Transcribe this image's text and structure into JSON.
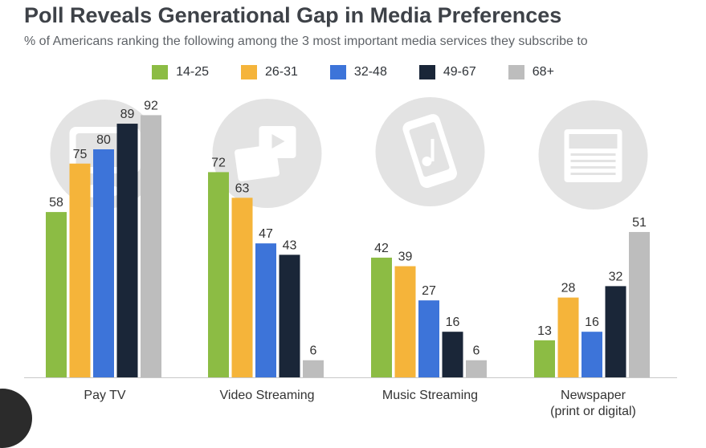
{
  "title": "Poll Reveals Generational Gap in Media Preferences",
  "subtitle": "% of Americans ranking the following among the 3 most important media services they subscribe to",
  "colors": {
    "14-25": "#8cbc44",
    "26-31": "#f5b43a",
    "32-48": "#3d74d9",
    "49-67": "#1a2638",
    "68+": "#bdbdbd"
  },
  "chart_data": {
    "type": "bar",
    "title": "Poll Reveals Generational Gap in Media Preferences",
    "subtitle": "% of Americans ranking the following among the 3 most important media services they subscribe to",
    "xlabel": "",
    "ylabel": "",
    "ylim": [
      0,
      92
    ],
    "grid": false,
    "legend_position": "top-center",
    "categories": [
      {
        "label": "Pay TV",
        "icon": "tv-icon"
      },
      {
        "label": "Video Streaming",
        "icon": "video-streaming-icon"
      },
      {
        "label": "Music Streaming",
        "icon": "music-phone-icon"
      },
      {
        "label": "Newspaper",
        "label_line2": "(print or digital)",
        "icon": "newspaper-icon"
      }
    ],
    "series": [
      {
        "name": "14-25",
        "values": [
          58,
          72,
          42,
          13
        ]
      },
      {
        "name": "26-31",
        "values": [
          75,
          63,
          39,
          28
        ]
      },
      {
        "name": "32-48",
        "values": [
          80,
          47,
          27,
          16
        ]
      },
      {
        "name": "49-67",
        "values": [
          89,
          43,
          16,
          32
        ]
      },
      {
        "name": "68+",
        "values": [
          92,
          6,
          6,
          51
        ]
      }
    ]
  }
}
